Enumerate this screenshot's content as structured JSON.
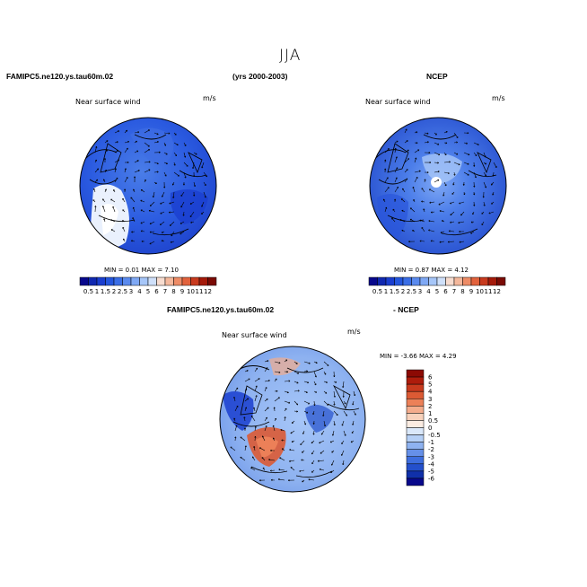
{
  "title": "JJA",
  "top_left": {
    "case_label": "FAMIPC5.ne120.ys.tau60m.02",
    "years": "(yrs 2000-2003)",
    "variable": "Near surface wind",
    "units": "m/s",
    "minmax": "MIN =   0.01 MAX =    7.10"
  },
  "top_right": {
    "case_label": "NCEP",
    "variable": "Near surface wind",
    "units": "m/s",
    "minmax": "MIN =   0.87 MAX =    4.12"
  },
  "bottom": {
    "case_label": "FAMIPC5.ne120.ys.tau60m.02",
    "diff_label": "- NCEP",
    "variable": "Near surface wind",
    "units": "m/s",
    "minmax": "MIN =  -3.66 MAX =    4.29"
  },
  "colorbar_abs": {
    "labels": [
      "0.5",
      "1",
      "1.5",
      "2",
      "2.5",
      "3",
      "4",
      "5",
      "6",
      "7",
      "8",
      "9",
      "10",
      "11",
      "12"
    ],
    "colors": [
      "#08088c",
      "#1028b0",
      "#1a3ecf",
      "#2456dd",
      "#3a6ee6",
      "#5a8aee",
      "#7fa8f4",
      "#a6c6f8",
      "#cfe0fa",
      "#f7dccf",
      "#f4b89c",
      "#ee8c66",
      "#e2623c",
      "#c83a1e",
      "#a41a0a",
      "#7a0a04"
    ]
  },
  "colorbar_diff": {
    "labels": [
      "6",
      "5",
      "4",
      "3",
      "2",
      "1",
      "0.5",
      "0",
      "-0.5",
      "-1",
      "-2",
      "-3",
      "-4",
      "-5",
      "-6"
    ],
    "colors": [
      "#8c0a04",
      "#ae1c0c",
      "#c83a1e",
      "#dc5a34",
      "#ec8058",
      "#f4ac8c",
      "#f8d2bc",
      "#fbece2",
      "#dae8fa",
      "#b6d0f6",
      "#8eb2f0",
      "#6690e8",
      "#3e6ede",
      "#2450cc",
      "#1030aa",
      "#08088c"
    ]
  }
}
